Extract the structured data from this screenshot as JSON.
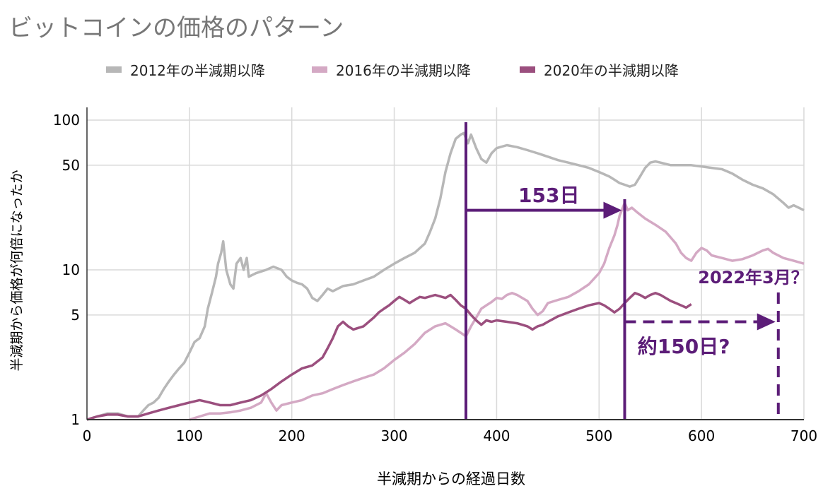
{
  "chart_data": {
    "type": "line",
    "title": "ビットコインの価格のパターン",
    "xlabel": "半減期からの経過日数",
    "ylabel": "半減期から価格が何倍になったか",
    "xlim": [
      0,
      700
    ],
    "ylim": [
      1,
      100
    ],
    "yscale": "log",
    "grid": true,
    "legend_position": "top",
    "x_ticks": [
      "0",
      "100",
      "200",
      "300",
      "400",
      "500",
      "600",
      "700"
    ],
    "y_ticks": [
      "1",
      "5",
      "10",
      "50",
      "100"
    ],
    "series": [
      {
        "name": "2012年の半減期以降",
        "color": "#b7b7b7",
        "points": [
          [
            0,
            1
          ],
          [
            10,
            1.05
          ],
          [
            20,
            1.1
          ],
          [
            30,
            1.1
          ],
          [
            40,
            1.05
          ],
          [
            50,
            1.05
          ],
          [
            55,
            1.15
          ],
          [
            60,
            1.25
          ],
          [
            65,
            1.3
          ],
          [
            70,
            1.4
          ],
          [
            75,
            1.6
          ],
          [
            80,
            1.8
          ],
          [
            85,
            2.0
          ],
          [
            90,
            2.2
          ],
          [
            95,
            2.4
          ],
          [
            100,
            2.8
          ],
          [
            105,
            3.3
          ],
          [
            110,
            3.5
          ],
          [
            115,
            4.2
          ],
          [
            118,
            5.5
          ],
          [
            122,
            7
          ],
          [
            126,
            9
          ],
          [
            128,
            11
          ],
          [
            131,
            13
          ],
          [
            133,
            15.5
          ],
          [
            136,
            10
          ],
          [
            140,
            8
          ],
          [
            143,
            7.5
          ],
          [
            146,
            11
          ],
          [
            150,
            12
          ],
          [
            153,
            10
          ],
          [
            156,
            12
          ],
          [
            158,
            9
          ],
          [
            165,
            9.5
          ],
          [
            175,
            10
          ],
          [
            182,
            10.5
          ],
          [
            190,
            10
          ],
          [
            195,
            9
          ],
          [
            200,
            8.5
          ],
          [
            205,
            8.2
          ],
          [
            210,
            8
          ],
          [
            215,
            7.5
          ],
          [
            220,
            6.5
          ],
          [
            225,
            6.2
          ],
          [
            230,
            6.8
          ],
          [
            235,
            7.5
          ],
          [
            240,
            7.2
          ],
          [
            250,
            7.8
          ],
          [
            260,
            8
          ],
          [
            270,
            8.5
          ],
          [
            280,
            9
          ],
          [
            290,
            10
          ],
          [
            300,
            11
          ],
          [
            310,
            12
          ],
          [
            320,
            13
          ],
          [
            330,
            15
          ],
          [
            335,
            18
          ],
          [
            340,
            22
          ],
          [
            345,
            30
          ],
          [
            350,
            45
          ],
          [
            355,
            60
          ],
          [
            360,
            75
          ],
          [
            365,
            80
          ],
          [
            368,
            82
          ],
          [
            372,
            70
          ],
          [
            375,
            80
          ],
          [
            380,
            65
          ],
          [
            385,
            55
          ],
          [
            390,
            52
          ],
          [
            395,
            60
          ],
          [
            400,
            65
          ],
          [
            410,
            68
          ],
          [
            420,
            66
          ],
          [
            430,
            63
          ],
          [
            440,
            60
          ],
          [
            450,
            57
          ],
          [
            460,
            54
          ],
          [
            470,
            52
          ],
          [
            480,
            50
          ],
          [
            490,
            48
          ],
          [
            500,
            45
          ],
          [
            510,
            42
          ],
          [
            515,
            40
          ],
          [
            520,
            38
          ],
          [
            525,
            37
          ],
          [
            530,
            36
          ],
          [
            535,
            37
          ],
          [
            540,
            42
          ],
          [
            545,
            48
          ],
          [
            550,
            52
          ],
          [
            555,
            53
          ],
          [
            560,
            52
          ],
          [
            570,
            50
          ],
          [
            580,
            50
          ],
          [
            590,
            50
          ],
          [
            600,
            49
          ],
          [
            610,
            48
          ],
          [
            620,
            47
          ],
          [
            630,
            44
          ],
          [
            640,
            40
          ],
          [
            650,
            37
          ],
          [
            660,
            35
          ],
          [
            670,
            32
          ],
          [
            680,
            28
          ],
          [
            685,
            26
          ],
          [
            690,
            27
          ],
          [
            700,
            25
          ]
        ]
      },
      {
        "name": "2016年の半減期以降",
        "color": "#d4a9c4",
        "points": [
          [
            100,
            1
          ],
          [
            110,
            1.05
          ],
          [
            120,
            1.1
          ],
          [
            130,
            1.1
          ],
          [
            140,
            1.12
          ],
          [
            150,
            1.15
          ],
          [
            160,
            1.2
          ],
          [
            170,
            1.3
          ],
          [
            175,
            1.5
          ],
          [
            180,
            1.3
          ],
          [
            185,
            1.15
          ],
          [
            190,
            1.25
          ],
          [
            200,
            1.3
          ],
          [
            210,
            1.35
          ],
          [
            220,
            1.45
          ],
          [
            230,
            1.5
          ],
          [
            240,
            1.6
          ],
          [
            250,
            1.7
          ],
          [
            260,
            1.8
          ],
          [
            270,
            1.9
          ],
          [
            280,
            2.0
          ],
          [
            290,
            2.2
          ],
          [
            300,
            2.5
          ],
          [
            310,
            2.8
          ],
          [
            320,
            3.2
          ],
          [
            330,
            3.8
          ],
          [
            340,
            4.2
          ],
          [
            350,
            4.4
          ],
          [
            355,
            4.2
          ],
          [
            360,
            4.0
          ],
          [
            365,
            3.8
          ],
          [
            370,
            3.6
          ],
          [
            375,
            4.2
          ],
          [
            380,
            4.8
          ],
          [
            385,
            5.5
          ],
          [
            390,
            5.8
          ],
          [
            395,
            6.1
          ],
          [
            400,
            6.5
          ],
          [
            405,
            6.4
          ],
          [
            410,
            6.8
          ],
          [
            415,
            7.0
          ],
          [
            420,
            6.8
          ],
          [
            425,
            6.5
          ],
          [
            430,
            6.2
          ],
          [
            435,
            5.5
          ],
          [
            440,
            5.0
          ],
          [
            445,
            5.3
          ],
          [
            450,
            6.0
          ],
          [
            460,
            6.3
          ],
          [
            470,
            6.6
          ],
          [
            480,
            7.2
          ],
          [
            490,
            8.0
          ],
          [
            500,
            9.5
          ],
          [
            505,
            11
          ],
          [
            510,
            14
          ],
          [
            515,
            17
          ],
          [
            518,
            20
          ],
          [
            520,
            23
          ],
          [
            525,
            28
          ],
          [
            528,
            25
          ],
          [
            532,
            26
          ],
          [
            538,
            24
          ],
          [
            545,
            22
          ],
          [
            555,
            20
          ],
          [
            565,
            18
          ],
          [
            575,
            15
          ],
          [
            580,
            13
          ],
          [
            585,
            12
          ],
          [
            590,
            11.5
          ],
          [
            595,
            13
          ],
          [
            600,
            14
          ],
          [
            605,
            13.5
          ],
          [
            610,
            12.5
          ],
          [
            620,
            12
          ],
          [
            630,
            11.5
          ],
          [
            640,
            11.8
          ],
          [
            650,
            12.5
          ],
          [
            660,
            13.5
          ],
          [
            665,
            13.8
          ],
          [
            670,
            13
          ],
          [
            680,
            12
          ],
          [
            690,
            11.5
          ],
          [
            700,
            11
          ]
        ]
      },
      {
        "name": "2020年の半減期以降",
        "color": "#9b4f7e",
        "points": [
          [
            0,
            1
          ],
          [
            10,
            1.05
          ],
          [
            20,
            1.08
          ],
          [
            30,
            1.08
          ],
          [
            40,
            1.05
          ],
          [
            50,
            1.05
          ],
          [
            60,
            1.1
          ],
          [
            70,
            1.15
          ],
          [
            80,
            1.2
          ],
          [
            90,
            1.25
          ],
          [
            100,
            1.3
          ],
          [
            110,
            1.35
          ],
          [
            120,
            1.3
          ],
          [
            130,
            1.25
          ],
          [
            140,
            1.25
          ],
          [
            150,
            1.3
          ],
          [
            160,
            1.35
          ],
          [
            170,
            1.45
          ],
          [
            180,
            1.6
          ],
          [
            190,
            1.8
          ],
          [
            200,
            2.0
          ],
          [
            210,
            2.2
          ],
          [
            220,
            2.3
          ],
          [
            230,
            2.6
          ],
          [
            235,
            3.0
          ],
          [
            240,
            3.5
          ],
          [
            245,
            4.2
          ],
          [
            250,
            4.5
          ],
          [
            255,
            4.2
          ],
          [
            260,
            4.0
          ],
          [
            270,
            4.2
          ],
          [
            280,
            4.8
          ],
          [
            285,
            5.2
          ],
          [
            290,
            5.5
          ],
          [
            295,
            5.8
          ],
          [
            300,
            6.2
          ],
          [
            305,
            6.6
          ],
          [
            310,
            6.3
          ],
          [
            315,
            6.0
          ],
          [
            320,
            6.3
          ],
          [
            325,
            6.6
          ],
          [
            330,
            6.5
          ],
          [
            340,
            6.8
          ],
          [
            350,
            6.5
          ],
          [
            355,
            6.8
          ],
          [
            360,
            6.3
          ],
          [
            365,
            5.8
          ],
          [
            370,
            5.5
          ],
          [
            375,
            5.0
          ],
          [
            380,
            4.6
          ],
          [
            385,
            4.3
          ],
          [
            390,
            4.6
          ],
          [
            395,
            4.5
          ],
          [
            400,
            4.6
          ],
          [
            410,
            4.5
          ],
          [
            420,
            4.4
          ],
          [
            430,
            4.2
          ],
          [
            435,
            4.0
          ],
          [
            440,
            4.2
          ],
          [
            445,
            4.3
          ],
          [
            450,
            4.5
          ],
          [
            460,
            4.9
          ],
          [
            470,
            5.2
          ],
          [
            480,
            5.5
          ],
          [
            490,
            5.8
          ],
          [
            500,
            6.0
          ],
          [
            505,
            5.8
          ],
          [
            510,
            5.5
          ],
          [
            515,
            5.2
          ],
          [
            520,
            5.5
          ],
          [
            525,
            6.0
          ],
          [
            530,
            6.5
          ],
          [
            535,
            7.0
          ],
          [
            540,
            6.8
          ],
          [
            545,
            6.5
          ],
          [
            550,
            6.8
          ],
          [
            555,
            7.0
          ],
          [
            560,
            6.8
          ],
          [
            565,
            6.5
          ],
          [
            570,
            6.2
          ],
          [
            575,
            6.0
          ],
          [
            580,
            5.8
          ],
          [
            585,
            5.6
          ],
          [
            590,
            5.9
          ]
        ]
      }
    ],
    "annotations": {
      "label_153": "153日",
      "label_150": "約150日?",
      "label_2022": "2022年3月？",
      "color": "#5c1d78",
      "line1_x": 370,
      "line2_x": 525,
      "line3_x": 675,
      "arrow1_y": 25,
      "arrow2_y": 4.5
    }
  }
}
